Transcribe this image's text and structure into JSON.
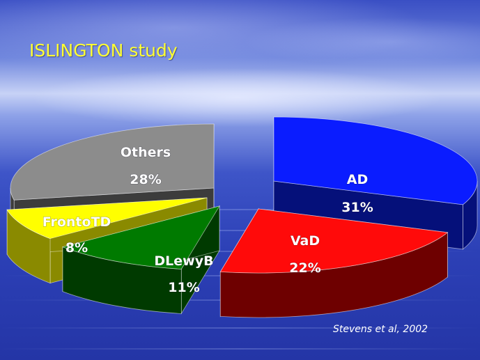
{
  "slide": {
    "title": "ISLINGTON study",
    "citation": "Stevens et al, 2002"
  },
  "chart_data": {
    "type": "pie",
    "title": "ISLINGTON study",
    "style": "3d-exploded",
    "slices": [
      {
        "label": "AD",
        "value_label": "31%",
        "value": 31,
        "top_color": "#0a1cff",
        "side_color": "#05107a"
      },
      {
        "label": "VaD",
        "value_label": "22%",
        "value": 22,
        "top_color": "#ff0a0a",
        "side_color": "#6e0000"
      },
      {
        "label": "DLewyB",
        "value_label": "11%",
        "value": 11,
        "top_color": "#007a00",
        "side_color": "#003a00"
      },
      {
        "label": "FrontoTD",
        "value_label": "8%",
        "value": 8,
        "top_color": "#ffff00",
        "side_color": "#8a8a00"
      },
      {
        "label": "Others",
        "value_label": "28%",
        "value": 28,
        "top_color": "#8c8c8c",
        "side_color": "#3c3c3c"
      }
    ]
  }
}
